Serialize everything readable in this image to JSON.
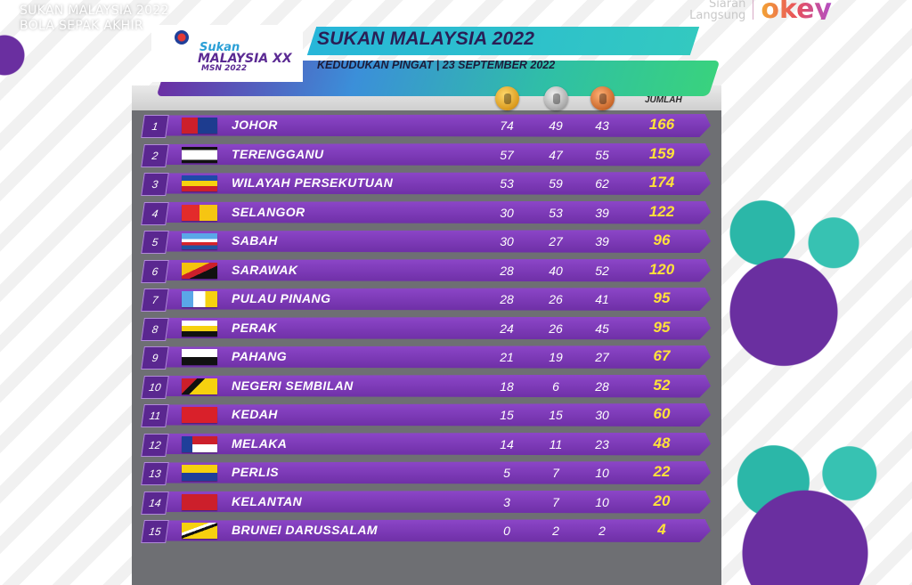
{
  "overlay": {
    "line1": "SUKAN MALAYSIA 2022",
    "line2": "BOLA SEPAK AKHIR"
  },
  "broadcaster": {
    "siaran_line1": "Siaran",
    "siaran_line2": "Langsung",
    "logo_text": "okey"
  },
  "logo": {
    "sukan": "Sukan",
    "malaysia": "MALAYSIA XX",
    "msn": "MSN 2022"
  },
  "banner": {
    "title": "SUKAN MALAYSIA 2022",
    "subtitle": "KEDUDUKAN PINGAT  |  23 SEPTEMBER 2022"
  },
  "columns": {
    "gold_icon": "gold-medal-icon",
    "silver_icon": "silver-medal-icon",
    "bronze_icon": "bronze-medal-icon",
    "total": "JUMLAH"
  },
  "colors": {
    "row_purple": "#7a38b6",
    "total_yellow": "#ffe23a",
    "board_grey": "#6e6f73"
  },
  "standings": [
    {
      "rank": "1",
      "state": "JOHOR",
      "gold": "74",
      "silver": "49",
      "bronze": "43",
      "total": "166",
      "flag": "johor"
    },
    {
      "rank": "2",
      "state": "TERENGGANU",
      "gold": "57",
      "silver": "47",
      "bronze": "55",
      "total": "159",
      "flag": "terengganu"
    },
    {
      "rank": "3",
      "state": "WILAYAH PERSEKUTUAN",
      "gold": "53",
      "silver": "59",
      "bronze": "62",
      "total": "174",
      "flag": "wp"
    },
    {
      "rank": "4",
      "state": "SELANGOR",
      "gold": "30",
      "silver": "53",
      "bronze": "39",
      "total": "122",
      "flag": "selangor"
    },
    {
      "rank": "5",
      "state": "SABAH",
      "gold": "30",
      "silver": "27",
      "bronze": "39",
      "total": "96",
      "flag": "sabah"
    },
    {
      "rank": "6",
      "state": "SARAWAK",
      "gold": "28",
      "silver": "40",
      "bronze": "52",
      "total": "120",
      "flag": "sarawak"
    },
    {
      "rank": "7",
      "state": "PULAU PINANG",
      "gold": "28",
      "silver": "26",
      "bronze": "41",
      "total": "95",
      "flag": "penang"
    },
    {
      "rank": "8",
      "state": "PERAK",
      "gold": "24",
      "silver": "26",
      "bronze": "45",
      "total": "95",
      "flag": "perak"
    },
    {
      "rank": "9",
      "state": "PAHANG",
      "gold": "21",
      "silver": "19",
      "bronze": "27",
      "total": "67",
      "flag": "pahang"
    },
    {
      "rank": "10",
      "state": "NEGERI SEMBILAN",
      "gold": "18",
      "silver": "6",
      "bronze": "28",
      "total": "52",
      "flag": "ns"
    },
    {
      "rank": "11",
      "state": "KEDAH",
      "gold": "15",
      "silver": "15",
      "bronze": "30",
      "total": "60",
      "flag": "kedah"
    },
    {
      "rank": "12",
      "state": "MELAKA",
      "gold": "14",
      "silver": "11",
      "bronze": "23",
      "total": "48",
      "flag": "melaka"
    },
    {
      "rank": "13",
      "state": "PERLIS",
      "gold": "5",
      "silver": "7",
      "bronze": "10",
      "total": "22",
      "flag": "perlis"
    },
    {
      "rank": "14",
      "state": "KELANTAN",
      "gold": "3",
      "silver": "7",
      "bronze": "10",
      "total": "20",
      "flag": "kelantan"
    },
    {
      "rank": "15",
      "state": "BRUNEI DARUSSALAM",
      "gold": "0",
      "silver": "2",
      "bronze": "2",
      "total": "4",
      "flag": "brunei"
    }
  ]
}
